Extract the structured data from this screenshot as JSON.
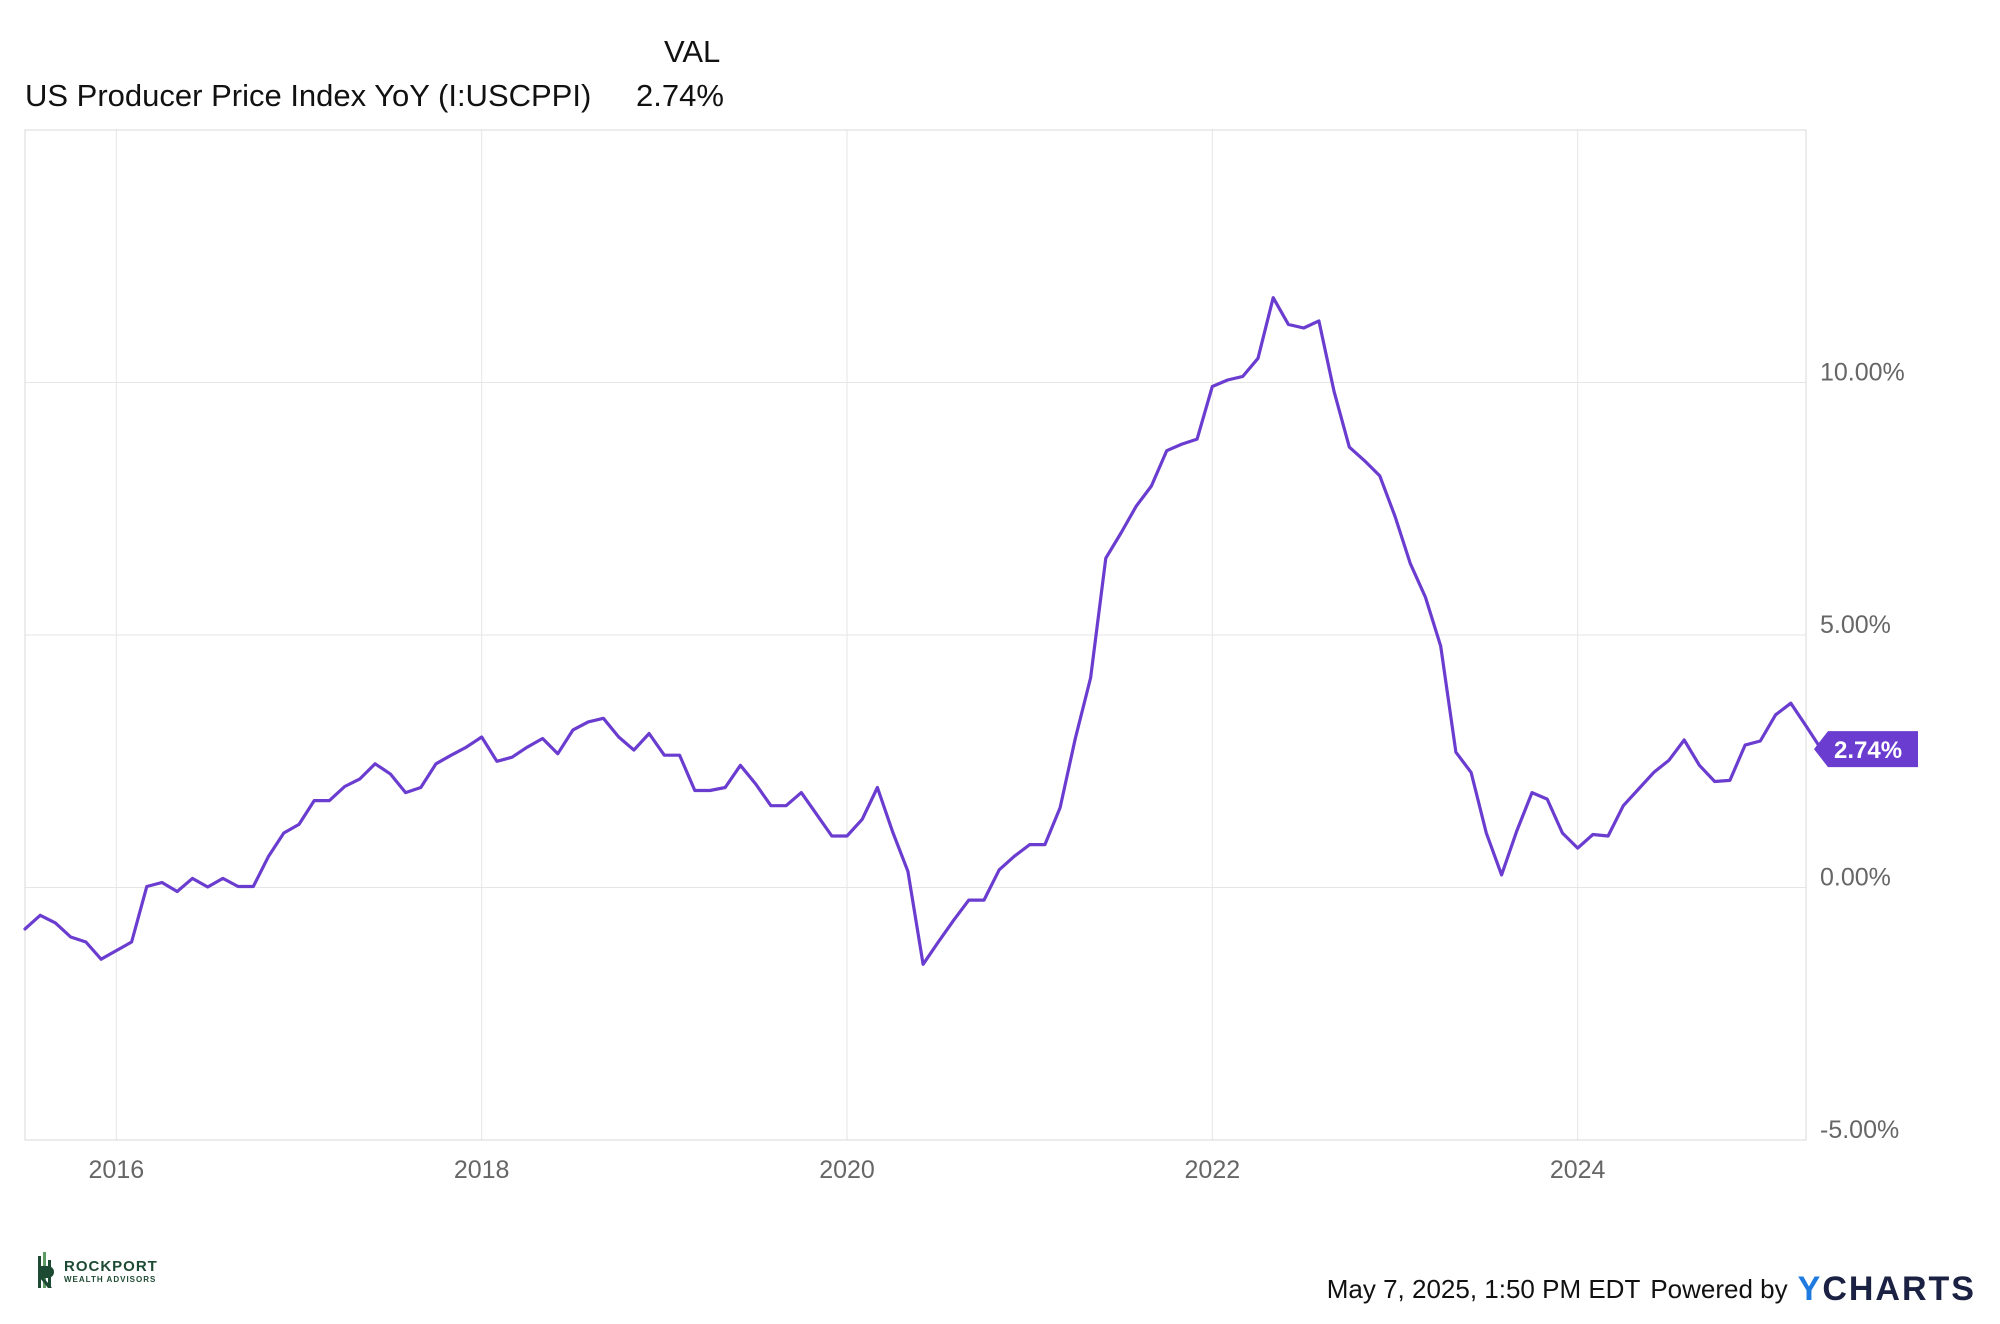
{
  "legend": {
    "header": "VAL",
    "series_label": "US Producer Price Index YoY (I:USCPPI)",
    "series_value": "2.74%"
  },
  "footer": {
    "timestamp": "May 7, 2025, 1:50 PM EDT",
    "powered_by": "Powered by",
    "brand_y": "Y",
    "brand_rest": "CHARTS"
  },
  "watermark": {
    "line1": "ROCKPORT",
    "line2": "WEALTH ADVISORS"
  },
  "colors": {
    "series": "#6a3ccf",
    "grid": "#e6e6e6",
    "axis_text": "#666666"
  },
  "chart_data": {
    "type": "line",
    "title": "",
    "xlabel": "",
    "ylabel": "",
    "x_ticks": [
      "2016",
      "2018",
      "2020",
      "2022",
      "2024"
    ],
    "y_ticks": [
      "10.00%",
      "5.00%",
      "0.00%",
      "-5.00%"
    ],
    "y_tick_values": [
      10,
      5,
      0,
      -5
    ],
    "ylim": [
      -5,
      15
    ],
    "xlim": [
      "2015-07",
      "2025-04"
    ],
    "grid": true,
    "last_value_label": "2.74%",
    "series": [
      {
        "name": "US Producer Price Index YoY (I:USCPPI)",
        "points": [
          [
            "2015-07",
            -0.82
          ],
          [
            "2015-08",
            -0.55
          ],
          [
            "2015-09",
            -0.7
          ],
          [
            "2015-10",
            -0.98
          ],
          [
            "2015-11",
            -1.08
          ],
          [
            "2015-12",
            -1.42
          ],
          [
            "2016-01",
            -1.25
          ],
          [
            "2016-02",
            -1.08
          ],
          [
            "2016-03",
            0.02
          ],
          [
            "2016-04",
            0.1
          ],
          [
            "2016-05",
            -0.08
          ],
          [
            "2016-06",
            0.18
          ],
          [
            "2016-07",
            0.01
          ],
          [
            "2016-08",
            0.18
          ],
          [
            "2016-09",
            0.02
          ],
          [
            "2016-10",
            0.02
          ],
          [
            "2016-11",
            0.62
          ],
          [
            "2016-12",
            1.08
          ],
          [
            "2017-01",
            1.25
          ],
          [
            "2017-02",
            1.72
          ],
          [
            "2017-03",
            1.72
          ],
          [
            "2017-04",
            2.0
          ],
          [
            "2017-05",
            2.15
          ],
          [
            "2017-06",
            2.45
          ],
          [
            "2017-07",
            2.25
          ],
          [
            "2017-08",
            1.88
          ],
          [
            "2017-09",
            1.98
          ],
          [
            "2017-10",
            2.45
          ],
          [
            "2017-11",
            2.62
          ],
          [
            "2017-12",
            2.78
          ],
          [
            "2018-01",
            2.98
          ],
          [
            "2018-02",
            2.5
          ],
          [
            "2018-03",
            2.58
          ],
          [
            "2018-04",
            2.78
          ],
          [
            "2018-05",
            2.95
          ],
          [
            "2018-06",
            2.65
          ],
          [
            "2018-07",
            3.12
          ],
          [
            "2018-08",
            3.28
          ],
          [
            "2018-09",
            3.35
          ],
          [
            "2018-10",
            2.98
          ],
          [
            "2018-11",
            2.72
          ],
          [
            "2018-12",
            3.05
          ],
          [
            "2019-01",
            2.62
          ],
          [
            "2019-02",
            2.62
          ],
          [
            "2019-03",
            1.92
          ],
          [
            "2019-04",
            1.92
          ],
          [
            "2019-05",
            1.98
          ],
          [
            "2019-06",
            2.42
          ],
          [
            "2019-07",
            2.05
          ],
          [
            "2019-08",
            1.62
          ],
          [
            "2019-09",
            1.62
          ],
          [
            "2019-10",
            1.88
          ],
          [
            "2019-11",
            1.45
          ],
          [
            "2019-12",
            1.02
          ],
          [
            "2020-01",
            1.02
          ],
          [
            "2020-02",
            1.35
          ],
          [
            "2020-03",
            1.98
          ],
          [
            "2020-04",
            1.1
          ],
          [
            "2020-05",
            0.32
          ],
          [
            "2020-06",
            -1.52
          ],
          [
            "2020-07",
            -1.08
          ],
          [
            "2020-08",
            -0.65
          ],
          [
            "2020-09",
            -0.25
          ],
          [
            "2020-10",
            -0.25
          ],
          [
            "2020-11",
            0.35
          ],
          [
            "2020-12",
            0.62
          ],
          [
            "2021-01",
            0.85
          ],
          [
            "2021-02",
            0.85
          ],
          [
            "2021-03",
            1.58
          ],
          [
            "2021-04",
            2.95
          ],
          [
            "2021-05",
            4.15
          ],
          [
            "2021-06",
            6.52
          ],
          [
            "2021-07",
            7.02
          ],
          [
            "2021-08",
            7.55
          ],
          [
            "2021-09",
            7.95
          ],
          [
            "2021-10",
            8.65
          ],
          [
            "2021-11",
            8.78
          ],
          [
            "2021-12",
            8.88
          ],
          [
            "2022-01",
            9.92
          ],
          [
            "2022-02",
            10.05
          ],
          [
            "2022-03",
            10.12
          ],
          [
            "2022-04",
            10.48
          ],
          [
            "2022-05",
            11.68
          ],
          [
            "2022-06",
            11.15
          ],
          [
            "2022-07",
            11.08
          ],
          [
            "2022-08",
            11.22
          ],
          [
            "2022-09",
            9.82
          ],
          [
            "2022-10",
            8.72
          ],
          [
            "2022-11",
            8.45
          ],
          [
            "2022-12",
            8.15
          ],
          [
            "2023-01",
            7.35
          ],
          [
            "2023-02",
            6.42
          ],
          [
            "2023-03",
            5.75
          ],
          [
            "2023-04",
            4.78
          ],
          [
            "2023-05",
            2.68
          ],
          [
            "2023-06",
            2.28
          ],
          [
            "2023-07",
            1.08
          ],
          [
            "2023-08",
            0.25
          ],
          [
            "2023-09",
            1.12
          ],
          [
            "2023-10",
            1.88
          ],
          [
            "2023-11",
            1.75
          ],
          [
            "2023-12",
            1.08
          ],
          [
            "2024-01",
            0.78
          ],
          [
            "2024-02",
            1.05
          ],
          [
            "2024-03",
            1.02
          ],
          [
            "2024-04",
            1.62
          ],
          [
            "2024-05",
            1.95
          ],
          [
            "2024-06",
            2.28
          ],
          [
            "2024-07",
            2.52
          ],
          [
            "2024-08",
            2.92
          ],
          [
            "2024-09",
            2.42
          ],
          [
            "2024-10",
            2.1
          ],
          [
            "2024-11",
            2.12
          ],
          [
            "2024-12",
            2.82
          ],
          [
            "2025-01",
            2.9
          ],
          [
            "2025-02",
            3.42
          ],
          [
            "2025-03",
            3.65
          ],
          [
            "2025-04",
            3.2
          ],
          [
            "2025-05",
            2.74
          ]
        ]
      }
    ]
  }
}
